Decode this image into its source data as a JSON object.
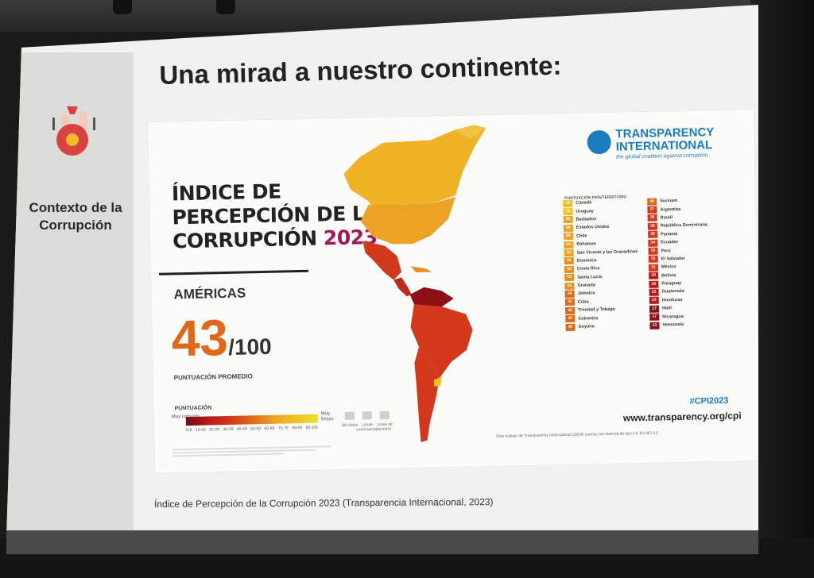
{
  "sidebar": {
    "label": "Contexto de la\nCorrupción",
    "icon": "money-bag-icon"
  },
  "slide": {
    "title": "Una mirad a nuestro continente:",
    "caption": "Índice de Percepción de la Corrupción 2023 (Transparencia Internacional, 2023)"
  },
  "poster": {
    "heading_line1": "ÍNDICE DE",
    "heading_line2": "PERCEPCIÓN DE LA",
    "heading_line3": "CORRUPCIÓN ",
    "heading_year": "2023",
    "region": "AMÉRICAS",
    "score": "43",
    "score_max": "/100",
    "score_caption": "PUNTUACIÓN PROMEDIO",
    "scale_title": "PUNTUACIÓN",
    "scale_low": "Muy corrupto",
    "scale_high": "Muy limpio",
    "scale_ticks": [
      "0-9",
      "10-19",
      "20-29",
      "30-39",
      "40-49",
      "50-59",
      "60-69",
      "70-79",
      "80-89",
      "90-100"
    ],
    "nodata_labels": [
      "Sin datos",
      "Límite controvertido",
      "Línea de control"
    ],
    "org_name_1": "TRANSPARENCY",
    "org_name_2": "INTERNATIONAL",
    "org_tagline": "the global coalition against corruption",
    "rank_header": "PUNTUACIÓN  PAÍS/TERRITORIO",
    "hashtag": "#CPI2023",
    "website": "www.transparency.org/cpi",
    "license": "Este trabajo de Transparency International (2024) cuenta con licencia de tipo CC BY-ND 4.0",
    "colors": {
      "accent_orange": "#e0681a",
      "year_magenta": "#a3155c",
      "brand_blue": "#1a7dc0"
    }
  },
  "rankings_left": [
    {
      "score": "76",
      "country": "Canadá",
      "color": "#efc321"
    },
    {
      "score": "73",
      "country": "Uruguay",
      "color": "#efc321"
    },
    {
      "score": "69",
      "country": "Barbados",
      "color": "#eca325"
    },
    {
      "score": "69",
      "country": "Estados Unidos",
      "color": "#eca325"
    },
    {
      "score": "66",
      "country": "Chile",
      "color": "#eca325"
    },
    {
      "score": "64",
      "country": "Bahamas",
      "color": "#eca325"
    },
    {
      "score": "60",
      "country": "San Vicente y las Granadinas",
      "color": "#eca325"
    },
    {
      "score": "56",
      "country": "Dominica",
      "color": "#e89122"
    },
    {
      "score": "55",
      "country": "Costa Rica",
      "color": "#e89122"
    },
    {
      "score": "55",
      "country": "Santa Lucía",
      "color": "#e89122"
    },
    {
      "score": "53",
      "country": "Granada",
      "color": "#e89122"
    },
    {
      "score": "44",
      "country": "Jamaica",
      "color": "#e0681a"
    },
    {
      "score": "42",
      "country": "Cuba",
      "color": "#e0681a"
    },
    {
      "score": "42",
      "country": "Trinidad y Tobago",
      "color": "#e0681a"
    },
    {
      "score": "40",
      "country": "Colombia",
      "color": "#e0681a"
    },
    {
      "score": "40",
      "country": "Guyana",
      "color": "#e0681a"
    }
  ],
  "rankings_right": [
    {
      "score": "40",
      "country": "Surinam",
      "color": "#e0681a"
    },
    {
      "score": "37",
      "country": "Argentina",
      "color": "#d3381c"
    },
    {
      "score": "36",
      "country": "Brasil",
      "color": "#d3381c"
    },
    {
      "score": "35",
      "country": "República Dominicana",
      "color": "#d3381c"
    },
    {
      "score": "35",
      "country": "Panamá",
      "color": "#d3381c"
    },
    {
      "score": "34",
      "country": "Ecuador",
      "color": "#d3381c"
    },
    {
      "score": "33",
      "country": "Perú",
      "color": "#d3381c"
    },
    {
      "score": "31",
      "country": "El Salvador",
      "color": "#d3381c"
    },
    {
      "score": "31",
      "country": "México",
      "color": "#d3381c"
    },
    {
      "score": "29",
      "country": "Bolivia",
      "color": "#b8191b"
    },
    {
      "score": "28",
      "country": "Paraguay",
      "color": "#b8191b"
    },
    {
      "score": "23",
      "country": "Guatemala",
      "color": "#b8191b"
    },
    {
      "score": "23",
      "country": "Honduras",
      "color": "#b8191b"
    },
    {
      "score": "17",
      "country": "Haití",
      "color": "#8e1016"
    },
    {
      "score": "17",
      "country": "Nicaragua",
      "color": "#8e1016"
    },
    {
      "score": "13",
      "country": "Venezuela",
      "color": "#8e1016"
    }
  ]
}
